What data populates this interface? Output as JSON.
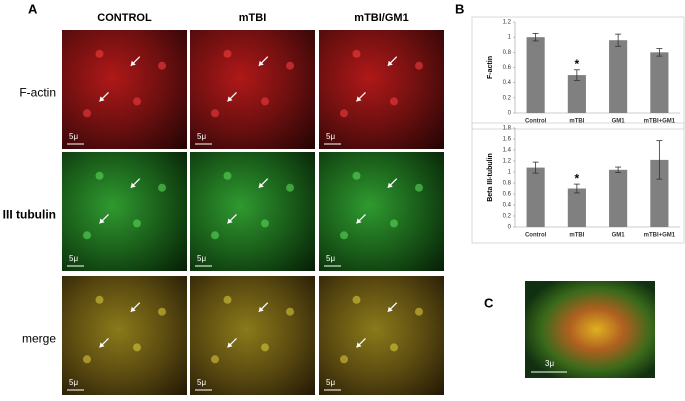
{
  "panel_a": {
    "label": "A",
    "columns": [
      "CONTROL",
      "mTBI",
      "mTBI/GM1"
    ],
    "rows": [
      "F-actin",
      "β III tubulin",
      "merge"
    ],
    "scale_labels": [
      [
        "5μ",
        "5μ",
        "5μ"
      ],
      [
        "5μ",
        "5μ",
        "5μ"
      ],
      [
        "5μ",
        "5μ",
        "5μ"
      ]
    ]
  },
  "panel_b": {
    "label": "B"
  },
  "chart_data": [
    {
      "type": "bar",
      "ylabel": "F-actin",
      "categories": [
        "Control",
        "mTBI",
        "GM1",
        "mTBI+GM1"
      ],
      "values": [
        1.0,
        0.5,
        0.96,
        0.8
      ],
      "errors": [
        0.05,
        0.07,
        0.08,
        0.05
      ],
      "color": "#808080",
      "ylim": [
        0,
        1.2
      ],
      "yticks": [
        0,
        0.2,
        0.4,
        0.6,
        0.8,
        1,
        1.2
      ],
      "annotations": [
        {
          "label": "*",
          "category": "mTBI"
        }
      ]
    },
    {
      "type": "bar",
      "ylabel": "Beta III-tubulin",
      "categories": [
        "Control",
        "mTBI",
        "GM1",
        "mTBI+GM1"
      ],
      "values": [
        1.08,
        0.7,
        1.04,
        1.22
      ],
      "errors": [
        0.1,
        0.08,
        0.05,
        0.35
      ],
      "color": "#808080",
      "ylim": [
        0,
        1.8
      ],
      "yticks": [
        0,
        0.2,
        0.4,
        0.6,
        0.8,
        1,
        1.2,
        1.4,
        1.6,
        1.8
      ],
      "annotations": [
        {
          "label": "*",
          "category": "mTBI"
        }
      ]
    }
  ],
  "panel_c": {
    "label": "C",
    "scale_label": "3μ"
  }
}
